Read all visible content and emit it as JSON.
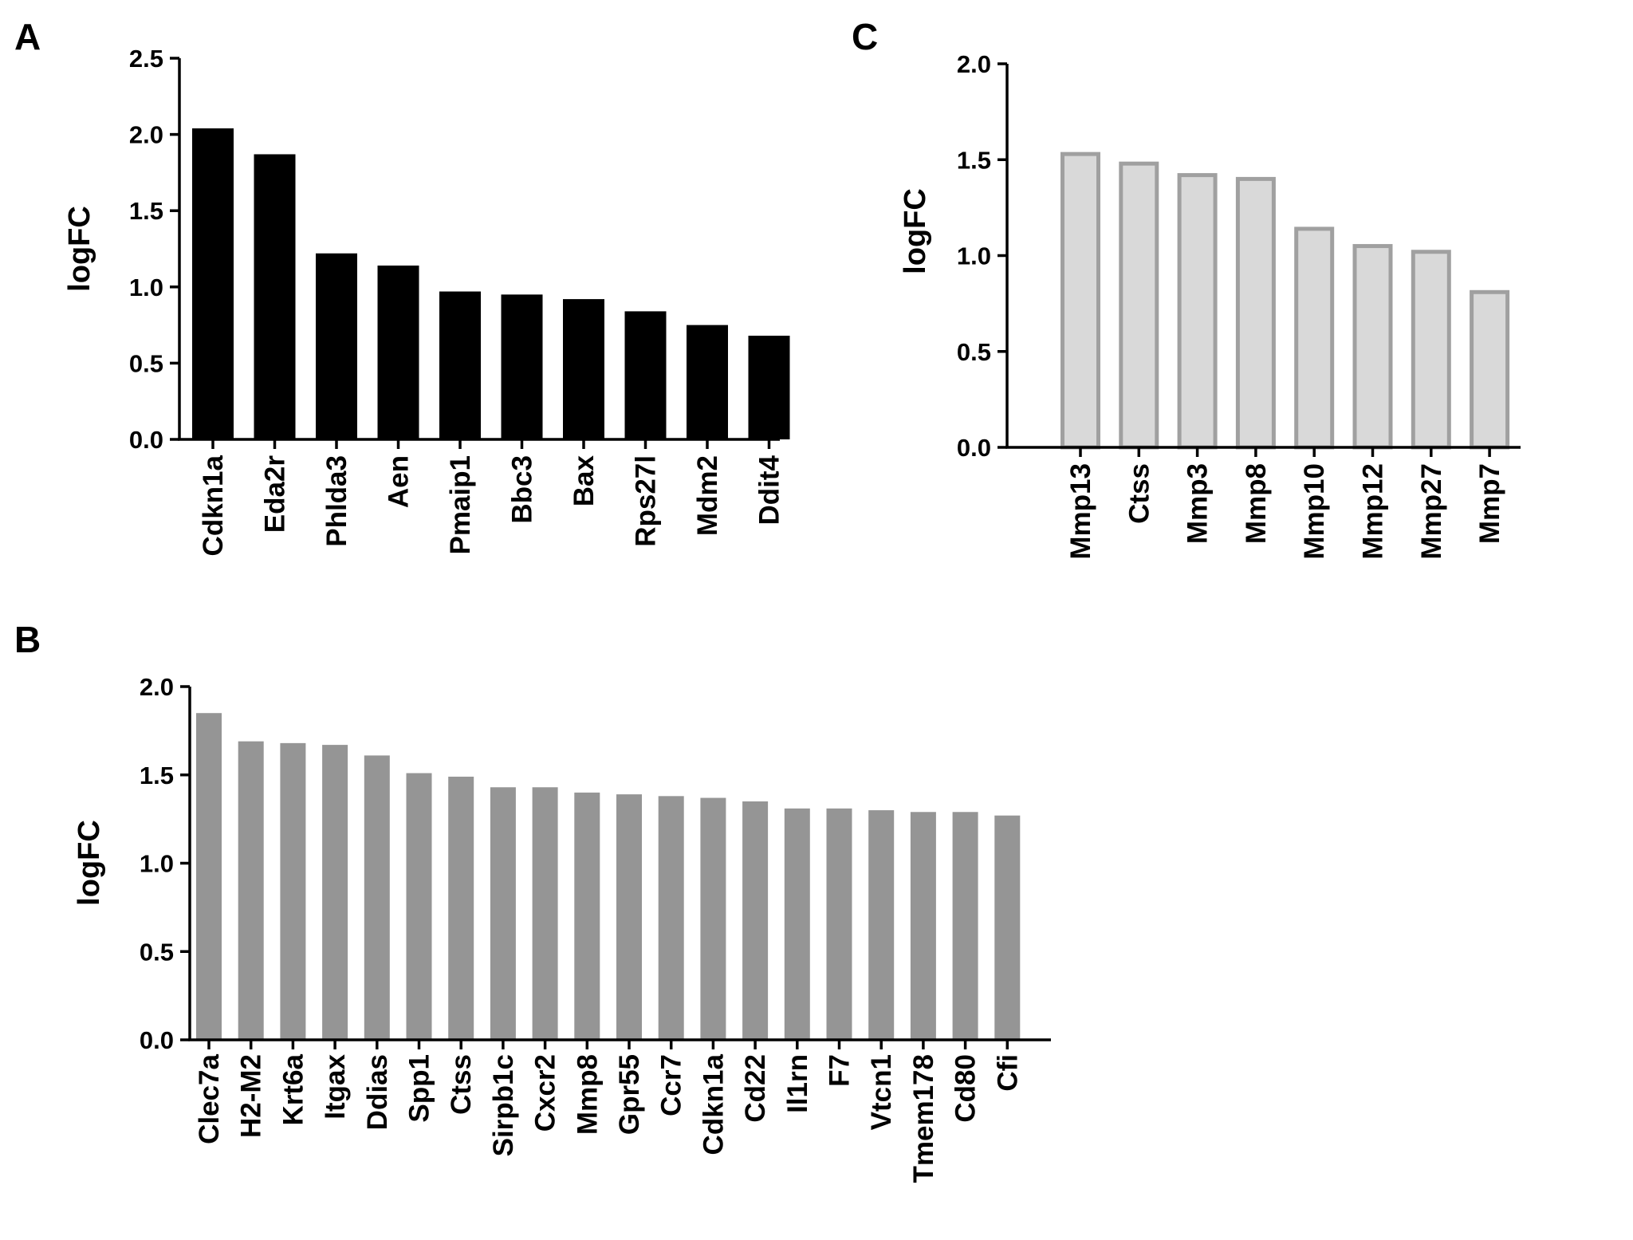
{
  "chart_data": [
    {
      "panel": "A",
      "type": "bar",
      "title": "",
      "xlabel": "",
      "ylabel": "logFC",
      "ylim": [
        0,
        2.5
      ],
      "yticks": [
        "0.0",
        "0.5",
        "1.0",
        "1.5",
        "2.0",
        "2.5"
      ],
      "categories": [
        "Cdkn1a",
        "Eda2r",
        "Phlda3",
        "Aen",
        "Pmaip1",
        "Bbc3",
        "Bax",
        "Rps27l",
        "Mdm2",
        "Ddit4"
      ],
      "values": [
        2.04,
        1.87,
        1.22,
        1.14,
        0.97,
        0.95,
        0.92,
        0.84,
        0.75,
        0.68
      ],
      "bar_fill": "#000000",
      "bar_stroke": "#000000",
      "grid": false
    },
    {
      "panel": "B",
      "type": "bar",
      "title": "",
      "xlabel": "",
      "ylabel": "logFC",
      "ylim": [
        0,
        2.0
      ],
      "yticks": [
        "0.0",
        "0.5",
        "1.0",
        "1.5",
        "2.0"
      ],
      "categories": [
        "Clec7a",
        "H2-M2",
        "Krt6a",
        "Itgax",
        "Ddias",
        "Spp1",
        "Ctss",
        "Sirpb1c",
        "Cxcr2",
        "Mmp8",
        "Gpr55",
        "Ccr7",
        "Cdkn1a",
        "Cd22",
        "Il1rn",
        "F7",
        "Vtcn1",
        "Tmem178",
        "Cd80",
        "Cfi"
      ],
      "values": [
        1.85,
        1.69,
        1.68,
        1.67,
        1.61,
        1.51,
        1.49,
        1.43,
        1.43,
        1.4,
        1.39,
        1.38,
        1.37,
        1.35,
        1.31,
        1.31,
        1.3,
        1.29,
        1.29,
        1.27
      ],
      "bar_fill": "#959595",
      "bar_stroke": "#959595",
      "grid": false
    },
    {
      "panel": "C",
      "type": "bar",
      "title": "",
      "xlabel": "",
      "ylabel": "logFC",
      "ylim": [
        0,
        2.0
      ],
      "yticks": [
        "0.0",
        "0.5",
        "1.0",
        "1.5",
        "2.0"
      ],
      "categories": [
        "Mmp13",
        "Ctss",
        "Mmp3",
        "Mmp8",
        "Mmp10",
        "Mmp12",
        "Mmp27",
        "Mmp7"
      ],
      "values": [
        1.54,
        1.49,
        1.43,
        1.41,
        1.15,
        1.06,
        1.03,
        0.82
      ],
      "bar_fill": "#d9d9d9",
      "bar_stroke": "#a0a0a0",
      "grid": false
    }
  ]
}
